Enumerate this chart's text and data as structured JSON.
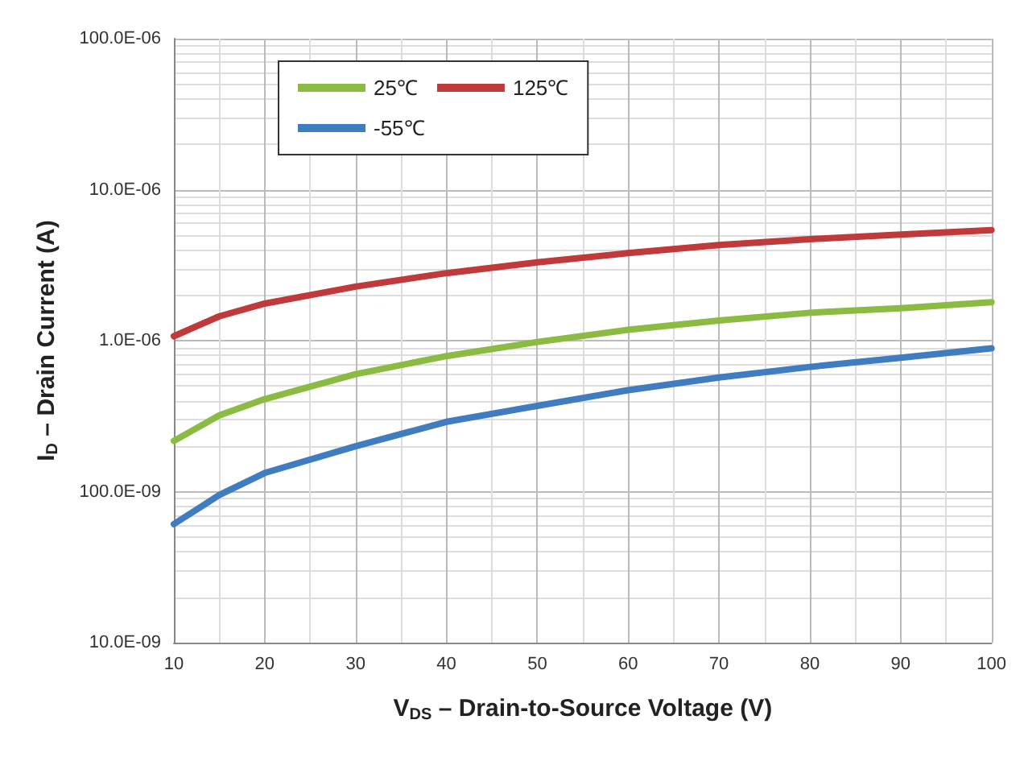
{
  "chart_data": {
    "type": "line",
    "xlabel": "V$_{DS}$ – Drain-to-Source Voltage (V)",
    "ylabel": "I$_{D}$ – Drain Current (A)",
    "x": [
      10,
      15,
      20,
      30,
      40,
      50,
      60,
      70,
      80,
      90,
      100
    ],
    "series": [
      {
        "name": "25℃",
        "color": "#8cbb44",
        "values": [
          2.17e-07,
          3.2e-07,
          4.1e-07,
          6e-07,
          7.9e-07,
          9.8e-07,
          1.18e-06,
          1.36e-06,
          1.53e-06,
          1.64e-06,
          1.8e-06
        ]
      },
      {
        "name": "125℃",
        "color": "#c0393b",
        "values": [
          1.07e-06,
          1.45e-06,
          1.76e-06,
          2.28e-06,
          2.8e-06,
          3.3e-06,
          3.8e-06,
          4.3e-06,
          4.7e-06,
          5.05e-06,
          5.4e-06
        ]
      },
      {
        "name": "-55℃",
        "color": "#3f7cc0",
        "values": [
          6.1e-08,
          9.5e-08,
          1.33e-07,
          2e-07,
          2.9e-07,
          3.7e-07,
          4.7e-07,
          5.7e-07,
          6.7e-07,
          7.7e-07,
          8.9e-07
        ]
      }
    ],
    "xlim": [
      10,
      100
    ],
    "xticks": [
      10,
      20,
      30,
      40,
      50,
      60,
      70,
      80,
      90,
      100
    ],
    "ylim": [
      1e-08,
      0.0001
    ],
    "yticks": [
      {
        "value": 1e-08,
        "label": "10.0E-09"
      },
      {
        "value": 1e-07,
        "label": "100.0E-09"
      },
      {
        "value": 1e-06,
        "label": "1.0E-06"
      },
      {
        "value": 1e-05,
        "label": "10.0E-06"
      },
      {
        "value": 0.0001,
        "label": "100.0E-06"
      }
    ],
    "log": "y",
    "grid": true,
    "legend": "top left",
    "marker": "none",
    "line_style": "solid"
  }
}
